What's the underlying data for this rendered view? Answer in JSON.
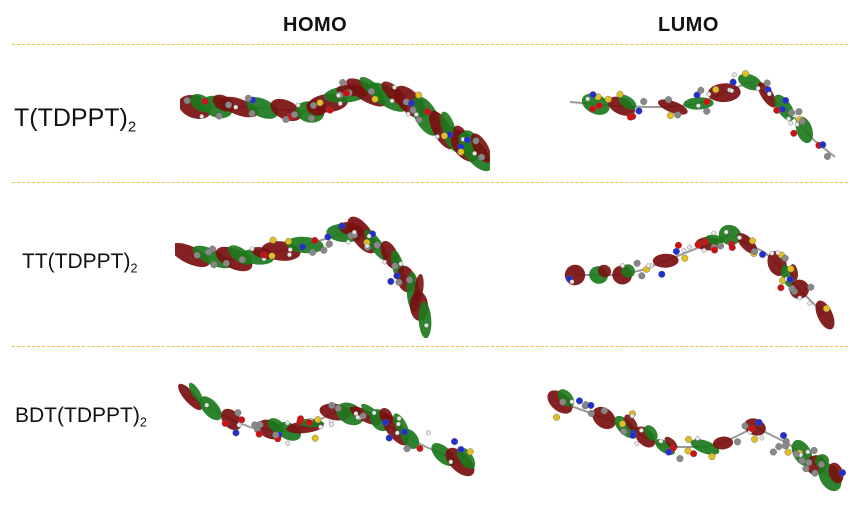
{
  "headers": {
    "homo": "HOMO",
    "lumo": "LUMO"
  },
  "rows": [
    {
      "label_main": "T(TDPPT)",
      "label_sub": "2"
    },
    {
      "label_main": "TT(TDPPT)",
      "label_sub": "2"
    },
    {
      "label_main": "BDT(TDPPT)",
      "label_sub": "2"
    }
  ],
  "colors": {
    "lobe_dark_red": "#7a0f10",
    "lobe_green": "#1c7a1c",
    "sulfur": "#e0c020",
    "nitrogen": "#2030d0",
    "oxygen": "#d01010",
    "carbon": "#888888",
    "hydrogen": "#e8e8e8",
    "divider": "#f0c040"
  }
}
